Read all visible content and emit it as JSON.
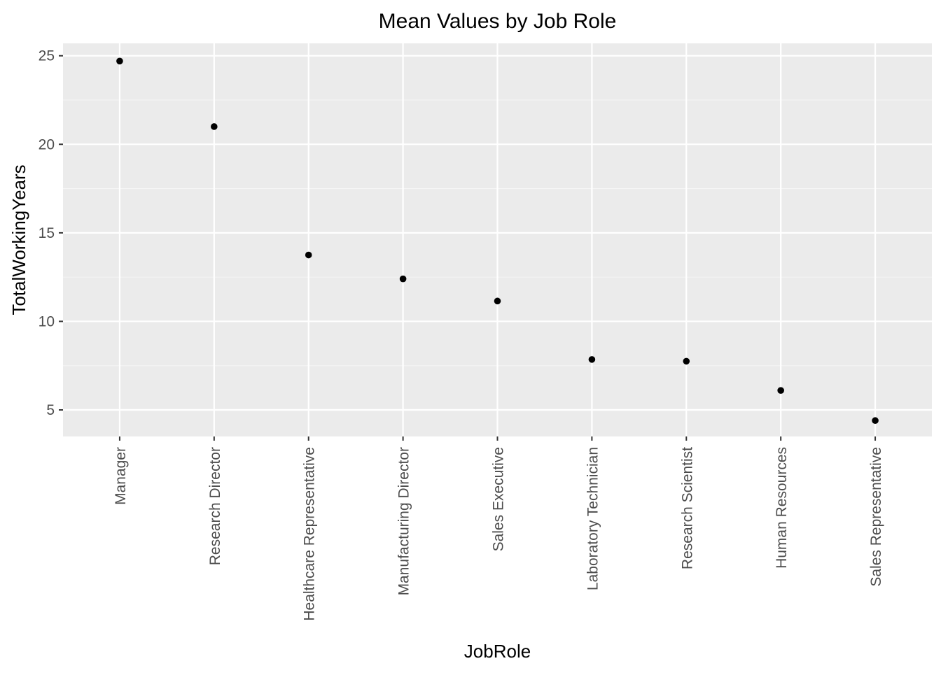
{
  "chart_data": {
    "type": "scatter",
    "title": "Mean Values by Job Role",
    "xlabel": "JobRole",
    "ylabel": "TotalWorkingYears",
    "categories": [
      "Manager",
      "Research Director",
      "Healthcare Representative",
      "Manufacturing Director",
      "Sales Executive",
      "Laboratory Technician",
      "Research Scientist",
      "Human Resources",
      "Sales Representative"
    ],
    "values": [
      24.7,
      21.0,
      13.75,
      12.4,
      11.15,
      7.85,
      7.75,
      6.1,
      4.4
    ],
    "yticks": [
      5,
      10,
      15,
      20,
      25
    ],
    "ylim": [
      3.5,
      25.7
    ],
    "grid": true,
    "colors": {
      "panel_background": "#ebebeb",
      "grid_major": "#ffffff",
      "grid_minor": "#f5f5f5",
      "point": "#000000",
      "tick_mark": "#333333",
      "tick_label": "#4d4d4d"
    }
  }
}
